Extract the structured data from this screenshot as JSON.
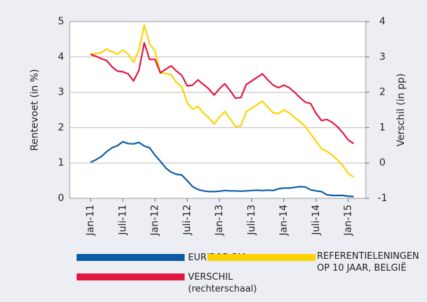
{
  "chart_data": {
    "type": "line",
    "ylabel": "Rentevoet (in %)",
    "y2label": "Verschil (in pp)",
    "categories": [
      "Jan-11",
      null,
      null,
      null,
      null,
      null,
      "Juli-11",
      null,
      null,
      null,
      null,
      null,
      "Jan-12",
      null,
      null,
      null,
      null,
      null,
      "Juli-12",
      null,
      null,
      null,
      null,
      null,
      "Jan-13",
      null,
      null,
      null,
      null,
      null,
      "Juli-13",
      null,
      null,
      null,
      null,
      null,
      "Jan-14",
      null,
      null,
      null,
      null,
      null,
      "Juli-14",
      null,
      null,
      null,
      null,
      null,
      "Jan-15",
      null
    ],
    "ylim": [
      0,
      5
    ],
    "yticks": [
      0,
      1,
      2,
      3,
      4,
      5
    ],
    "y2lim": [
      -1,
      4
    ],
    "y2ticks": [
      -1,
      0,
      1,
      2,
      3,
      4
    ],
    "grid": true,
    "series": [
      {
        "name": "EURIBOR 3M",
        "color": "#0b5aa6",
        "values": [
          1.02,
          1.09,
          1.18,
          1.32,
          1.43,
          1.49,
          1.6,
          1.55,
          1.54,
          1.58,
          1.48,
          1.43,
          1.22,
          1.05,
          0.86,
          0.74,
          0.68,
          0.66,
          0.5,
          0.33,
          0.25,
          0.21,
          0.19,
          0.19,
          0.2,
          0.22,
          0.21,
          0.21,
          0.2,
          0.21,
          0.22,
          0.23,
          0.22,
          0.23,
          0.22,
          0.27,
          0.29,
          0.29,
          0.31,
          0.33,
          0.32,
          0.24,
          0.21,
          0.19,
          0.1,
          0.08,
          0.08,
          0.08,
          0.06,
          0.05
        ]
      },
      {
        "name": "REFERENTIELENINGEN\nOP 10 JAAR, BELGIË",
        "color": "#ffd200",
        "values": [
          4.08,
          4.1,
          4.12,
          4.22,
          4.15,
          4.07,
          4.2,
          4.08,
          3.85,
          4.2,
          4.9,
          4.36,
          4.17,
          3.55,
          3.53,
          3.5,
          3.28,
          3.15,
          2.7,
          2.52,
          2.6,
          2.42,
          2.28,
          2.1,
          2.3,
          2.46,
          2.25,
          2.03,
          2.05,
          2.45,
          2.55,
          2.65,
          2.75,
          2.58,
          2.42,
          2.4,
          2.5,
          2.42,
          2.28,
          2.17,
          2.03,
          1.82,
          1.62,
          1.4,
          1.33,
          1.22,
          1.08,
          0.92,
          0.7,
          0.6
        ]
      },
      {
        "name": "VERSCHIL\n(rechterschaal)",
        "color": "#e2163f",
        "axis": "y2",
        "values": [
          3.07,
          3.02,
          2.95,
          2.9,
          2.72,
          2.6,
          2.58,
          2.52,
          2.32,
          2.62,
          3.4,
          2.93,
          2.93,
          2.55,
          2.65,
          2.75,
          2.6,
          2.48,
          2.18,
          2.2,
          2.35,
          2.22,
          2.1,
          1.92,
          2.1,
          2.24,
          2.05,
          1.83,
          1.85,
          2.22,
          2.32,
          2.42,
          2.52,
          2.35,
          2.2,
          2.13,
          2.2,
          2.13,
          2.0,
          1.85,
          1.72,
          1.68,
          1.4,
          1.2,
          1.23,
          1.15,
          1.02,
          0.85,
          0.65,
          0.55
        ]
      }
    ]
  }
}
